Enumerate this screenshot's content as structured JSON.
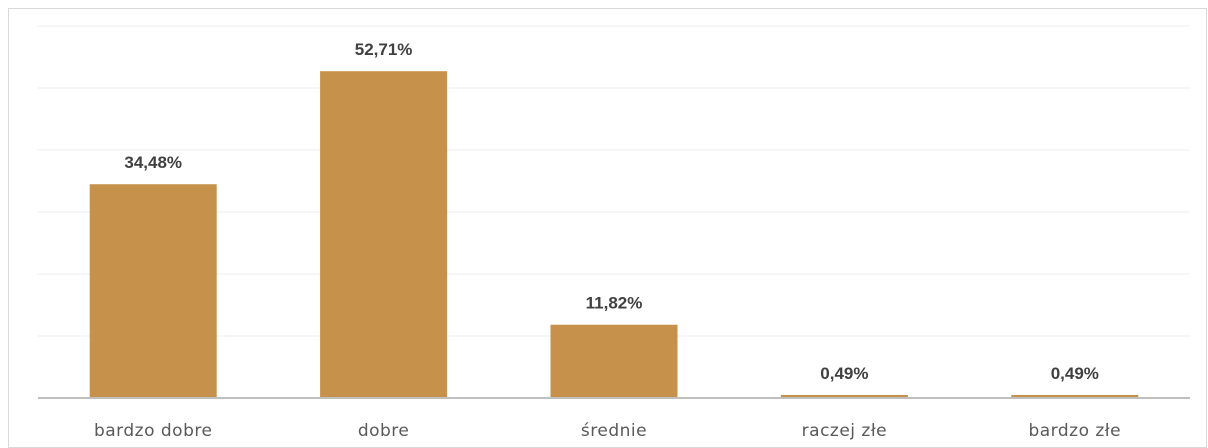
{
  "chart_data": {
    "type": "bar",
    "categories": [
      "bardzo dobre",
      "dobre",
      "średnie",
      "raczej złe",
      "bardzo złe"
    ],
    "values": [
      34.48,
      52.71,
      11.82,
      0.49,
      0.49
    ],
    "data_labels": [
      "34,48%",
      "52,71%",
      "11,82%",
      "0,49%",
      "0,49%"
    ],
    "title": "",
    "xlabel": "",
    "ylabel": "",
    "ylim": [
      0,
      60
    ],
    "grid": true,
    "legend": "none",
    "bar_color": "#c6924b",
    "gridline_color": "#ededed",
    "axis_color": "#bfbfbf"
  }
}
